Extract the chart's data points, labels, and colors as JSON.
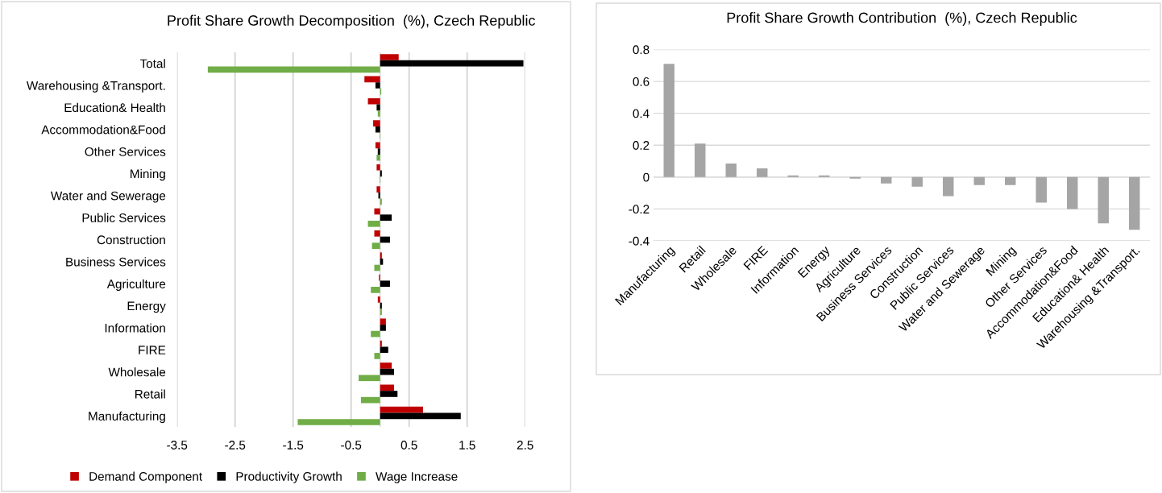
{
  "chart_data": [
    {
      "type": "bar",
      "orientation": "horizontal",
      "title": "Profit Share Growth Decomposition  (%), Czech Republic",
      "categories": [
        "Total",
        "Warehousing &Transport.",
        "Education& Health",
        "Accommodation&Food",
        "Other Services",
        "Mining",
        "Water and Sewerage",
        "Public Services",
        "Construction",
        "Business Services",
        "Agriculture",
        "Energy",
        "Information",
        "FIRE",
        "Wholesale",
        "Retail",
        "Manufacturing"
      ],
      "series": [
        {
          "name": "Demand Component",
          "color": "#c00000",
          "values": [
            0.32,
            -0.27,
            -0.21,
            -0.12,
            -0.08,
            -0.06,
            -0.06,
            -0.1,
            -0.1,
            0.03,
            -0.02,
            -0.04,
            0.1,
            0.03,
            0.2,
            0.24,
            0.74
          ]
        },
        {
          "name": "Productivity Growth",
          "color": "#000000",
          "values": [
            2.47,
            -0.08,
            -0.06,
            -0.08,
            -0.04,
            0.03,
            -0.03,
            0.2,
            0.17,
            0.05,
            0.17,
            0.03,
            0.1,
            0.14,
            0.24,
            0.3,
            1.39
          ]
        },
        {
          "name": "Wage Increase",
          "color": "#70ad47",
          "values": [
            -2.97,
            0.02,
            -0.04,
            -0.01,
            -0.06,
            -0.01,
            0.03,
            -0.21,
            -0.14,
            -0.1,
            -0.16,
            0.03,
            -0.16,
            -0.1,
            -0.37,
            -0.33,
            -1.42
          ]
        }
      ],
      "xlim": [
        -3.5,
        2.5
      ],
      "xticks": [
        -3.5,
        -2.5,
        -1.5,
        -0.5,
        0.5,
        1.5,
        2.5
      ],
      "grid": "x",
      "legend": "bottom"
    },
    {
      "type": "bar",
      "title": "Profit Share Growth Contribution  (%), Czech Republic",
      "categories": [
        "Manufacturing",
        "Retail",
        "Wholesale",
        "FIRE",
        "Information",
        "Energy",
        "Agriculture",
        "Business Services",
        "Construction",
        "Public Services",
        "Water and Sewerage",
        "Mining",
        "Other Services",
        "Accommodation&Food",
        "Education& Health",
        "Warehousing &Transport."
      ],
      "series": [
        {
          "color": "#a5a5a5",
          "values": [
            0.71,
            0.21,
            0.085,
            0.055,
            0.01,
            0.01,
            -0.01,
            -0.04,
            -0.06,
            -0.12,
            -0.05,
            -0.05,
            -0.16,
            -0.2,
            -0.29,
            -0.33
          ]
        }
      ],
      "ylim": [
        -0.4,
        0.8
      ],
      "yticks": [
        -0.4,
        -0.2,
        0,
        0.2,
        0.4,
        0.6,
        0.8
      ],
      "grid": "y"
    }
  ]
}
